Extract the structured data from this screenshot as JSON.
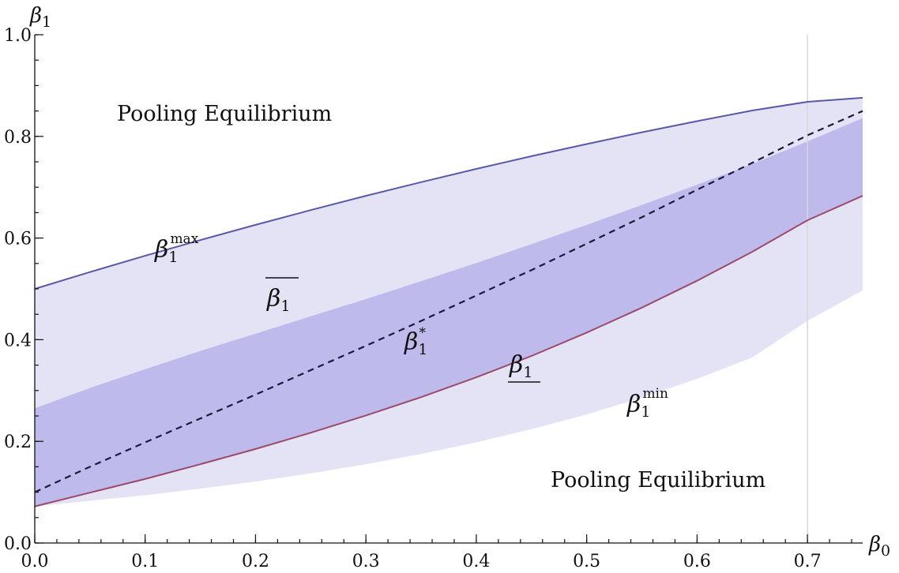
{
  "chart_data": {
    "type": "area",
    "x_axis": {
      "label": "β0",
      "range": [
        0,
        0.75
      ],
      "ticks": [
        0.0,
        0.1,
        0.2,
        0.3,
        0.4,
        0.5,
        0.6,
        0.7
      ],
      "tick_labels": [
        "0.0",
        "0.1",
        "0.2",
        "0.3",
        "0.4",
        "0.5",
        "0.6",
        "0.7"
      ]
    },
    "y_axis": {
      "label": "β1",
      "range": [
        0,
        1.0
      ],
      "ticks": [
        0.0,
        0.2,
        0.4,
        0.6,
        0.8,
        1.0
      ],
      "tick_labels": [
        "0.0",
        "0.2",
        "0.4",
        "0.6",
        "0.8",
        "1.0"
      ]
    },
    "grid": false,
    "reference_line": {
      "x": 0.7,
      "color": "#d8d8d8"
    },
    "x": [
      0.0,
      0.05,
      0.1,
      0.15,
      0.2,
      0.25,
      0.3,
      0.35,
      0.4,
      0.45,
      0.5,
      0.55,
      0.6,
      0.65,
      0.7,
      0.75
    ],
    "series": [
      {
        "key": "beta1_max",
        "style": "solid",
        "color": "#5a58a8",
        "values": [
          0.5,
          0.533,
          0.565,
          0.596,
          0.626,
          0.655,
          0.683,
          0.71,
          0.736,
          0.761,
          0.785,
          0.808,
          0.83,
          0.851,
          0.868,
          0.876
        ]
      },
      {
        "key": "beta1_upper",
        "style": "boundary",
        "values": [
          0.265,
          0.305,
          0.342,
          0.378,
          0.412,
          0.446,
          0.48,
          0.515,
          0.551,
          0.588,
          0.626,
          0.665,
          0.705,
          0.746,
          0.79,
          0.836
        ]
      },
      {
        "key": "beta1_star",
        "style": "dashed",
        "color": "#1a1a3a",
        "values": [
          0.1,
          0.15,
          0.198,
          0.245,
          0.292,
          0.34,
          0.388,
          0.437,
          0.487,
          0.537,
          0.589,
          0.641,
          0.695,
          0.748,
          0.802,
          0.85
        ]
      },
      {
        "key": "beta1_lower",
        "style": "solid",
        "color": "#9a4a6a",
        "values": [
          0.072,
          0.099,
          0.126,
          0.155,
          0.185,
          0.217,
          0.251,
          0.287,
          0.326,
          0.368,
          0.414,
          0.463,
          0.516,
          0.573,
          0.635,
          0.683
        ]
      },
      {
        "key": "beta1_min",
        "style": "boundary",
        "values": [
          0.072,
          0.083,
          0.094,
          0.107,
          0.121,
          0.137,
          0.155,
          0.175,
          0.198,
          0.224,
          0.253,
          0.286,
          0.323,
          0.365,
          0.437,
          0.497
        ]
      }
    ],
    "bands": [
      {
        "between": [
          "beta1_min",
          "beta1_max"
        ],
        "color": "#e4e3f6"
      },
      {
        "between": [
          "beta1_lower",
          "beta1_upper"
        ],
        "color": "#bfbaec"
      }
    ],
    "annotations": {
      "pooling_top": "Pooling Equilibrium",
      "pooling_bottom": "Pooling Equilibrium",
      "beta_symbol": "β",
      "label_max_sub": "1",
      "label_max_sup": "max",
      "label_min_sub": "1",
      "label_min_sup": "min",
      "label_star_sub": "1",
      "label_star_sup": "*",
      "label_upper_sub": "1",
      "label_lower_sub": "1"
    }
  }
}
